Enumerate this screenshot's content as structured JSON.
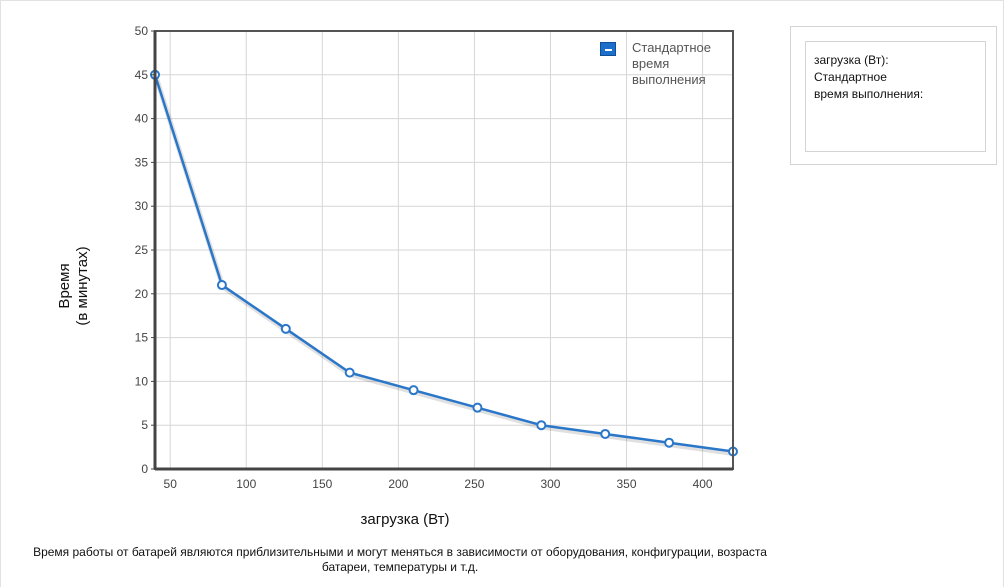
{
  "chart_data": {
    "type": "line",
    "xlabel": "загрузка (Вт)",
    "ylabel": "Время\n(в минутах)",
    "xlim": [
      40,
      420
    ],
    "ylim": [
      0,
      50
    ],
    "x_ticks": [
      50,
      100,
      150,
      200,
      250,
      300,
      350,
      400
    ],
    "y_ticks": [
      0,
      5,
      10,
      15,
      20,
      25,
      30,
      35,
      40,
      45,
      50
    ],
    "grid": true,
    "legend_position": "top-right",
    "series": [
      {
        "name": "Стандартное время выполнения",
        "color": "#2a77c9",
        "x": [
          40,
          84,
          126,
          168,
          210,
          252,
          294,
          336,
          378,
          420
        ],
        "y": [
          45,
          21,
          16,
          11,
          9,
          7,
          5,
          4,
          3,
          2
        ]
      }
    ]
  },
  "legend": {
    "label": "Стандартное время выполнения"
  },
  "tooltip": {
    "line1": "загрузка (Вт):",
    "line2": "Стандартное время выполнения:"
  },
  "note": "Время работы от батарей являются приблизительными и могут меняться в зависимости от оборудования, конфигурации, возраста батареи, температуры и т.д."
}
